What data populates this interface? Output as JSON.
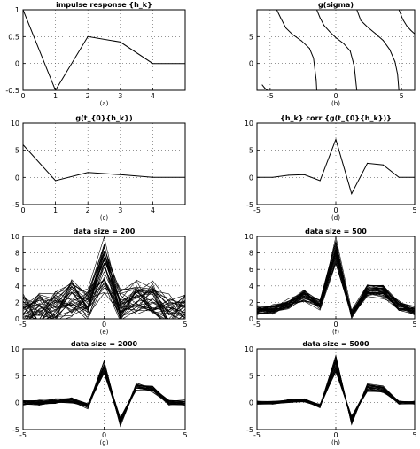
{
  "chart_data": [
    {
      "id": "a",
      "type": "line",
      "title": "impulse response {h_k}",
      "panel_label": "(a)",
      "xlim": [
        0,
        5
      ],
      "ylim": [
        -0.5,
        1
      ],
      "xticks": [
        0,
        1,
        2,
        3,
        4
      ],
      "yticks": [
        -0.5,
        0,
        0.5,
        1
      ],
      "xtick_labels": [
        "0",
        "1",
        "2",
        "3",
        "4"
      ],
      "ytick_labels": [
        "-0.5",
        "0",
        "0.5",
        "1"
      ],
      "grid": true,
      "series": [
        {
          "x": [
            0,
            1,
            2,
            3,
            4,
            5
          ],
          "values": [
            1,
            -0.5,
            0.5,
            0.4,
            0,
            0
          ]
        }
      ]
    },
    {
      "id": "b",
      "type": "line",
      "title": "g(sigma)",
      "panel_label": "(b)",
      "xlim": [
        -6,
        6
      ],
      "ylim": [
        -5,
        10
      ],
      "xticks": [
        -5,
        0,
        5
      ],
      "yticks": [
        -5,
        0,
        5,
        10
      ],
      "xtick_labels": [
        "-5",
        "0",
        "5"
      ],
      "ytick_labels": [
        "",
        "0",
        "5",
        ""
      ],
      "grid": true,
      "series": [
        {
          "x": [
            -5.6,
            -5.4,
            -5.2,
            -5.0,
            -4.8,
            -4.6,
            -4.5
          ],
          "values": [
            -4.0,
            -4.6,
            -5.0,
            -5.0,
            -5.0,
            -5.0,
            -5.0
          ]
        },
        {
          "x": [
            -4.5,
            -4.2,
            -3.8,
            -3.3,
            -2.6,
            -2.0,
            -1.7,
            -1.5,
            -1.45
          ],
          "values": [
            10.0,
            8.5,
            6.6,
            5.4,
            4.2,
            2.8,
            1.0,
            -3.0,
            -5.0
          ]
        },
        {
          "x": [
            -1.45,
            -1.2,
            -0.9,
            -0.5,
            0.0,
            0.6,
            1.1,
            1.4,
            1.55,
            1.6
          ],
          "values": [
            10.0,
            8.5,
            7.1,
            6.0,
            4.8,
            3.7,
            2.3,
            -0.5,
            -4.0,
            -5.0
          ]
        },
        {
          "x": [
            1.6,
            1.9,
            2.4,
            3.0,
            3.6,
            4.1,
            4.5,
            4.7,
            4.8
          ],
          "values": [
            10.0,
            8.0,
            6.8,
            5.6,
            4.3,
            2.6,
            0.3,
            -2.0,
            -5.0
          ]
        },
        {
          "x": [
            4.8,
            5.1,
            5.4,
            5.7,
            6.0
          ],
          "values": [
            10.0,
            8.2,
            7.0,
            6.2,
            5.5
          ]
        }
      ]
    },
    {
      "id": "c",
      "type": "line",
      "title": "g(t_{0}{h_k})",
      "panel_label": "(c)",
      "xlim": [
        0,
        5
      ],
      "ylim": [
        -5,
        10
      ],
      "xticks": [
        0,
        1,
        2,
        3,
        4
      ],
      "yticks": [
        -5,
        0,
        5,
        10
      ],
      "xtick_labels": [
        "0",
        "1",
        "2",
        "3",
        "4"
      ],
      "ytick_labels": [
        "-5",
        "0",
        "5",
        "10"
      ],
      "grid": true,
      "series": [
        {
          "x": [
            0,
            1,
            2,
            3,
            4,
            5
          ],
          "values": [
            6,
            -0.6,
            0.9,
            0.5,
            0,
            0
          ]
        }
      ]
    },
    {
      "id": "d",
      "type": "line",
      "title": "{h_k} corr {g(t_{0}{h_k})}",
      "panel_label": "(d)",
      "xlim": [
        -5,
        5
      ],
      "ylim": [
        -5,
        10
      ],
      "xticks": [
        -5,
        0,
        5
      ],
      "yticks": [
        -5,
        0,
        5,
        10
      ],
      "xtick_labels": [
        "-5",
        "0",
        "5"
      ],
      "ytick_labels": [
        "-5",
        "0",
        "5",
        "10"
      ],
      "grid": true,
      "series": [
        {
          "x": [
            -5,
            -4,
            -3,
            -2,
            -1,
            0,
            1,
            2,
            3,
            4,
            5
          ],
          "values": [
            0,
            0,
            0.4,
            0.5,
            -0.6,
            7,
            -3,
            2.6,
            2.3,
            0,
            0
          ]
        }
      ]
    },
    {
      "id": "e",
      "type": "line",
      "title": "data size = 200",
      "panel_label": "(e)",
      "xlim": [
        -5,
        5
      ],
      "ylim": [
        0,
        10
      ],
      "xticks": [
        -5,
        0,
        5
      ],
      "yticks": [
        0,
        2,
        4,
        6,
        8,
        10
      ],
      "xtick_labels": [
        "-5",
        "0",
        "5"
      ],
      "ytick_labels": [
        "0",
        "2",
        "4",
        "6",
        "8",
        "10"
      ],
      "grid": true,
      "ensemble": {
        "count": 36,
        "spread": 2.0,
        "center": [
          1,
          1,
          1.5,
          2.5,
          1.5,
          6,
          2,
          2.5,
          2.5,
          1,
          1
        ]
      }
    },
    {
      "id": "f",
      "type": "line",
      "title": "data size = 500",
      "panel_label": "(f)",
      "xlim": [
        -5,
        5
      ],
      "ylim": [
        0,
        10
      ],
      "xticks": [
        -5,
        0,
        5
      ],
      "yticks": [
        0,
        2,
        4,
        6,
        8,
        10
      ],
      "xtick_labels": [
        "-5",
        "0",
        "5"
      ],
      "ytick_labels": [
        "0",
        "2",
        "4",
        "6",
        "8",
        "10"
      ],
      "grid": true,
      "ensemble": {
        "count": 34,
        "spread": 0.5,
        "center": [
          1,
          1.2,
          1.8,
          2.8,
          1.6,
          8,
          0.5,
          3.2,
          3.2,
          1.5,
          1
        ]
      }
    },
    {
      "id": "g",
      "type": "line",
      "title": "data size = 2000",
      "panel_label": "(g)",
      "xlim": [
        -5,
        5
      ],
      "ylim": [
        -5,
        10
      ],
      "xticks": [
        -5,
        0,
        5
      ],
      "yticks": [
        -5,
        0,
        5,
        10
      ],
      "xtick_labels": [
        "-5",
        "0",
        "5"
      ],
      "ytick_labels": [
        "-5",
        "0",
        "5",
        "10"
      ],
      "grid": true,
      "ensemble": {
        "count": 26,
        "spread": 0.5,
        "center": [
          0,
          0,
          0.3,
          0.4,
          -0.7,
          6.5,
          -3.5,
          3,
          2.6,
          0,
          0
        ]
      }
    },
    {
      "id": "h",
      "type": "line",
      "title": "data size = 5000",
      "panel_label": "(h)",
      "xlim": [
        -5,
        5
      ],
      "ylim": [
        -5,
        10
      ],
      "xticks": [
        -5,
        0,
        5
      ],
      "yticks": [
        -5,
        0,
        5,
        10
      ],
      "xtick_labels": [
        "-5",
        "0",
        "5"
      ],
      "ytick_labels": [
        "-5",
        "0",
        "5",
        "10"
      ],
      "grid": true,
      "ensemble": {
        "count": 26,
        "spread": 0.3,
        "center": [
          0,
          0,
          0.3,
          0.4,
          -0.6,
          7,
          -3.2,
          2.8,
          2.4,
          0,
          0
        ]
      }
    }
  ]
}
